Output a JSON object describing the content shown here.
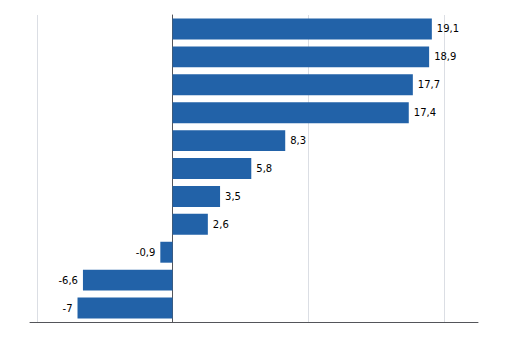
{
  "chart_data": {
    "type": "bar",
    "orientation": "horizontal",
    "categories": [
      null,
      null,
      null,
      null,
      null,
      null,
      null,
      null,
      null,
      null,
      null
    ],
    "values": [
      19.1,
      18.9,
      17.7,
      17.4,
      8.3,
      5.8,
      3.5,
      2.6,
      -0.9,
      -6.6,
      -7.0
    ],
    "value_labels": [
      "19,1",
      "18,9",
      "17,7",
      "17,4",
      "8,3",
      "5,8",
      "3,5",
      "2,6",
      "-0,9",
      "-6,6",
      "-7"
    ],
    "color": "#2262a8",
    "xlim": [
      -10.5,
      22.5
    ],
    "xticks": [
      -10,
      0,
      10,
      20
    ],
    "grid": true,
    "data_labels": true,
    "tick_labels": false
  }
}
